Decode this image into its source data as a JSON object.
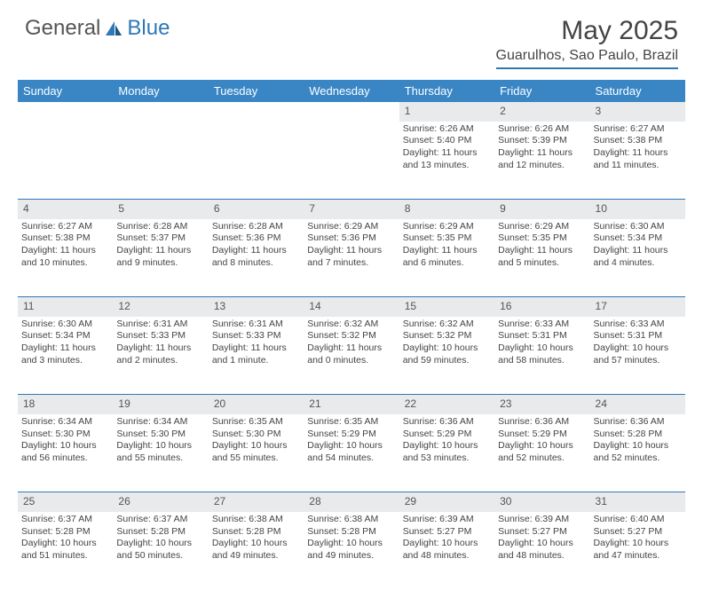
{
  "brand": {
    "part1": "General",
    "part2": "Blue"
  },
  "title": "May 2025",
  "location": "Guarulhos, Sao Paulo, Brazil",
  "colors": {
    "header_bg": "#3a86c5",
    "accent": "#2f78b7",
    "daynum_bg": "#e9eaec",
    "text": "#444444"
  },
  "calendar": {
    "type": "table",
    "days_of_week": [
      "Sunday",
      "Monday",
      "Tuesday",
      "Wednesday",
      "Thursday",
      "Friday",
      "Saturday"
    ],
    "weeks": [
      [
        null,
        null,
        null,
        null,
        {
          "n": "1",
          "sunrise": "Sunrise: 6:26 AM",
          "sunset": "Sunset: 5:40 PM",
          "daylight": "Daylight: 11 hours and 13 minutes."
        },
        {
          "n": "2",
          "sunrise": "Sunrise: 6:26 AM",
          "sunset": "Sunset: 5:39 PM",
          "daylight": "Daylight: 11 hours and 12 minutes."
        },
        {
          "n": "3",
          "sunrise": "Sunrise: 6:27 AM",
          "sunset": "Sunset: 5:38 PM",
          "daylight": "Daylight: 11 hours and 11 minutes."
        }
      ],
      [
        {
          "n": "4",
          "sunrise": "Sunrise: 6:27 AM",
          "sunset": "Sunset: 5:38 PM",
          "daylight": "Daylight: 11 hours and 10 minutes."
        },
        {
          "n": "5",
          "sunrise": "Sunrise: 6:28 AM",
          "sunset": "Sunset: 5:37 PM",
          "daylight": "Daylight: 11 hours and 9 minutes."
        },
        {
          "n": "6",
          "sunrise": "Sunrise: 6:28 AM",
          "sunset": "Sunset: 5:36 PM",
          "daylight": "Daylight: 11 hours and 8 minutes."
        },
        {
          "n": "7",
          "sunrise": "Sunrise: 6:29 AM",
          "sunset": "Sunset: 5:36 PM",
          "daylight": "Daylight: 11 hours and 7 minutes."
        },
        {
          "n": "8",
          "sunrise": "Sunrise: 6:29 AM",
          "sunset": "Sunset: 5:35 PM",
          "daylight": "Daylight: 11 hours and 6 minutes."
        },
        {
          "n": "9",
          "sunrise": "Sunrise: 6:29 AM",
          "sunset": "Sunset: 5:35 PM",
          "daylight": "Daylight: 11 hours and 5 minutes."
        },
        {
          "n": "10",
          "sunrise": "Sunrise: 6:30 AM",
          "sunset": "Sunset: 5:34 PM",
          "daylight": "Daylight: 11 hours and 4 minutes."
        }
      ],
      [
        {
          "n": "11",
          "sunrise": "Sunrise: 6:30 AM",
          "sunset": "Sunset: 5:34 PM",
          "daylight": "Daylight: 11 hours and 3 minutes."
        },
        {
          "n": "12",
          "sunrise": "Sunrise: 6:31 AM",
          "sunset": "Sunset: 5:33 PM",
          "daylight": "Daylight: 11 hours and 2 minutes."
        },
        {
          "n": "13",
          "sunrise": "Sunrise: 6:31 AM",
          "sunset": "Sunset: 5:33 PM",
          "daylight": "Daylight: 11 hours and 1 minute."
        },
        {
          "n": "14",
          "sunrise": "Sunrise: 6:32 AM",
          "sunset": "Sunset: 5:32 PM",
          "daylight": "Daylight: 11 hours and 0 minutes."
        },
        {
          "n": "15",
          "sunrise": "Sunrise: 6:32 AM",
          "sunset": "Sunset: 5:32 PM",
          "daylight": "Daylight: 10 hours and 59 minutes."
        },
        {
          "n": "16",
          "sunrise": "Sunrise: 6:33 AM",
          "sunset": "Sunset: 5:31 PM",
          "daylight": "Daylight: 10 hours and 58 minutes."
        },
        {
          "n": "17",
          "sunrise": "Sunrise: 6:33 AM",
          "sunset": "Sunset: 5:31 PM",
          "daylight": "Daylight: 10 hours and 57 minutes."
        }
      ],
      [
        {
          "n": "18",
          "sunrise": "Sunrise: 6:34 AM",
          "sunset": "Sunset: 5:30 PM",
          "daylight": "Daylight: 10 hours and 56 minutes."
        },
        {
          "n": "19",
          "sunrise": "Sunrise: 6:34 AM",
          "sunset": "Sunset: 5:30 PM",
          "daylight": "Daylight: 10 hours and 55 minutes."
        },
        {
          "n": "20",
          "sunrise": "Sunrise: 6:35 AM",
          "sunset": "Sunset: 5:30 PM",
          "daylight": "Daylight: 10 hours and 55 minutes."
        },
        {
          "n": "21",
          "sunrise": "Sunrise: 6:35 AM",
          "sunset": "Sunset: 5:29 PM",
          "daylight": "Daylight: 10 hours and 54 minutes."
        },
        {
          "n": "22",
          "sunrise": "Sunrise: 6:36 AM",
          "sunset": "Sunset: 5:29 PM",
          "daylight": "Daylight: 10 hours and 53 minutes."
        },
        {
          "n": "23",
          "sunrise": "Sunrise: 6:36 AM",
          "sunset": "Sunset: 5:29 PM",
          "daylight": "Daylight: 10 hours and 52 minutes."
        },
        {
          "n": "24",
          "sunrise": "Sunrise: 6:36 AM",
          "sunset": "Sunset: 5:28 PM",
          "daylight": "Daylight: 10 hours and 52 minutes."
        }
      ],
      [
        {
          "n": "25",
          "sunrise": "Sunrise: 6:37 AM",
          "sunset": "Sunset: 5:28 PM",
          "daylight": "Daylight: 10 hours and 51 minutes."
        },
        {
          "n": "26",
          "sunrise": "Sunrise: 6:37 AM",
          "sunset": "Sunset: 5:28 PM",
          "daylight": "Daylight: 10 hours and 50 minutes."
        },
        {
          "n": "27",
          "sunrise": "Sunrise: 6:38 AM",
          "sunset": "Sunset: 5:28 PM",
          "daylight": "Daylight: 10 hours and 49 minutes."
        },
        {
          "n": "28",
          "sunrise": "Sunrise: 6:38 AM",
          "sunset": "Sunset: 5:28 PM",
          "daylight": "Daylight: 10 hours and 49 minutes."
        },
        {
          "n": "29",
          "sunrise": "Sunrise: 6:39 AM",
          "sunset": "Sunset: 5:27 PM",
          "daylight": "Daylight: 10 hours and 48 minutes."
        },
        {
          "n": "30",
          "sunrise": "Sunrise: 6:39 AM",
          "sunset": "Sunset: 5:27 PM",
          "daylight": "Daylight: 10 hours and 48 minutes."
        },
        {
          "n": "31",
          "sunrise": "Sunrise: 6:40 AM",
          "sunset": "Sunset: 5:27 PM",
          "daylight": "Daylight: 10 hours and 47 minutes."
        }
      ]
    ]
  }
}
